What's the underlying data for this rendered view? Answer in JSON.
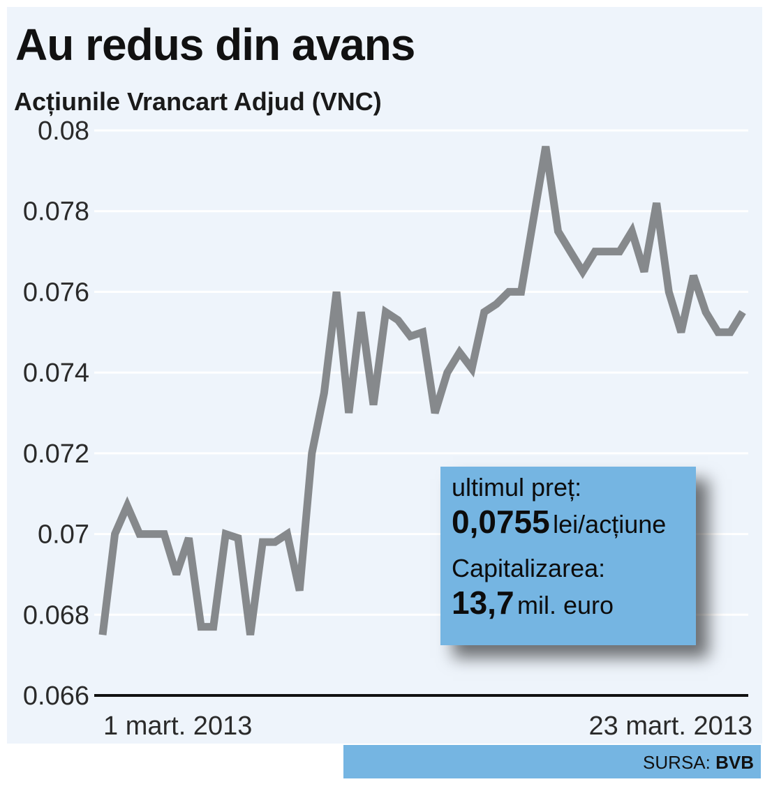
{
  "chart_data": {
    "type": "line",
    "title": "Au redus din avans",
    "subtitle": "Acțiunile Vrancart Adjud (VNC)",
    "ylim": [
      0.066,
      0.08
    ],
    "yticks": [
      "0.08",
      "0.078",
      "0.076",
      "0.074",
      "0.072",
      "0.07",
      "0.068",
      "0.066"
    ],
    "yticks_values": [
      0.08,
      0.078,
      0.076,
      0.074,
      0.072,
      0.07,
      0.068,
      0.066
    ],
    "x_labels": [
      "1 mart. 2013",
      "23 mart. 2013"
    ],
    "grid": true,
    "line_color": "#86898c",
    "series": [
      {
        "values": [
          0.0675,
          0.07,
          0.0707,
          0.07,
          0.07,
          0.07,
          0.069,
          0.0699,
          0.0677,
          0.0677,
          0.07,
          0.0699,
          0.0675,
          0.0698,
          0.0698,
          0.07,
          0.0686,
          0.072,
          0.0735,
          0.076,
          0.073,
          0.0755,
          0.0732,
          0.0755,
          0.0753,
          0.0749,
          0.075,
          0.073,
          0.074,
          0.0745,
          0.0741,
          0.0755,
          0.0757,
          0.076,
          0.076,
          0.0778,
          0.0796,
          0.0775,
          0.077,
          0.0765,
          0.077,
          0.077,
          0.077,
          0.0775,
          0.0765,
          0.0782,
          0.076,
          0.075,
          0.0764,
          0.0755,
          0.075,
          0.075,
          0.0755
        ]
      }
    ]
  },
  "infobox": {
    "label1": "ultimul preț:",
    "value1": "0,0755",
    "unit1": "lei/acțiune",
    "label2": "Capitalizarea:",
    "value2": "13,7",
    "unit2": "mil. euro"
  },
  "source": {
    "prefix": "SURSA:",
    "name": "BVB"
  },
  "colors": {
    "panel": "#eef4fb",
    "accent": "#75b5e2",
    "line": "#86898c"
  }
}
